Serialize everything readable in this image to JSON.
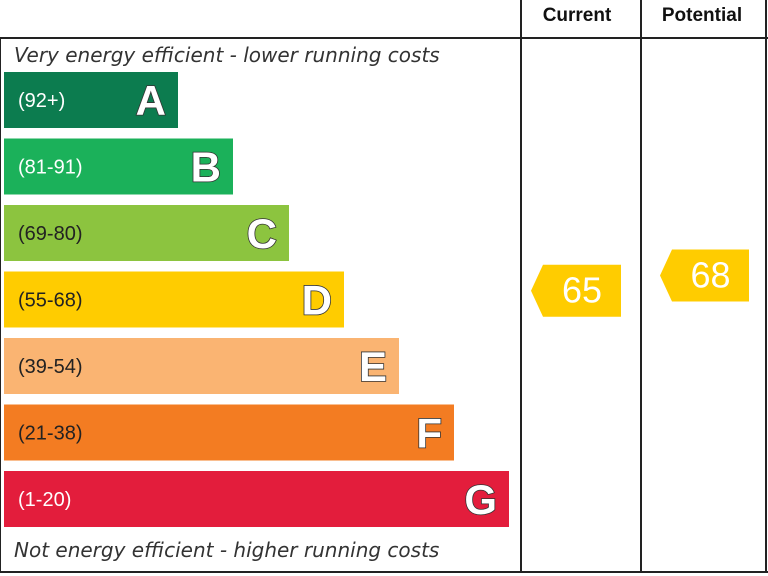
{
  "chart_data": {
    "type": "bar",
    "headers": {
      "current": "Current",
      "potential": "Potential"
    },
    "top_caption": "Very energy efficient - lower running costs",
    "bottom_caption": "Not energy efficient - higher running costs",
    "bands": [
      {
        "letter": "A",
        "range": "(92+)",
        "color": "#0c7c4f",
        "text_color": "#ffffff"
      },
      {
        "letter": "B",
        "range": "(81-91)",
        "color": "#1bb15a",
        "text_color": "#ffffff"
      },
      {
        "letter": "C",
        "range": "(69-80)",
        "color": "#8cc43f",
        "text_color": "#222222"
      },
      {
        "letter": "D",
        "range": "(55-68)",
        "color": "#ffcc00",
        "text_color": "#222222"
      },
      {
        "letter": "E",
        "range": "(39-54)",
        "color": "#fab472",
        "text_color": "#222222"
      },
      {
        "letter": "F",
        "range": "(21-38)",
        "color": "#f37c22",
        "text_color": "#222222"
      },
      {
        "letter": "G",
        "range": "(1-20)",
        "color": "#e31d3c",
        "text_color": "#ffffff"
      }
    ],
    "current": {
      "value": 65,
      "color": "#ffcc00"
    },
    "potential": {
      "value": 68,
      "color": "#ffcc00"
    }
  }
}
